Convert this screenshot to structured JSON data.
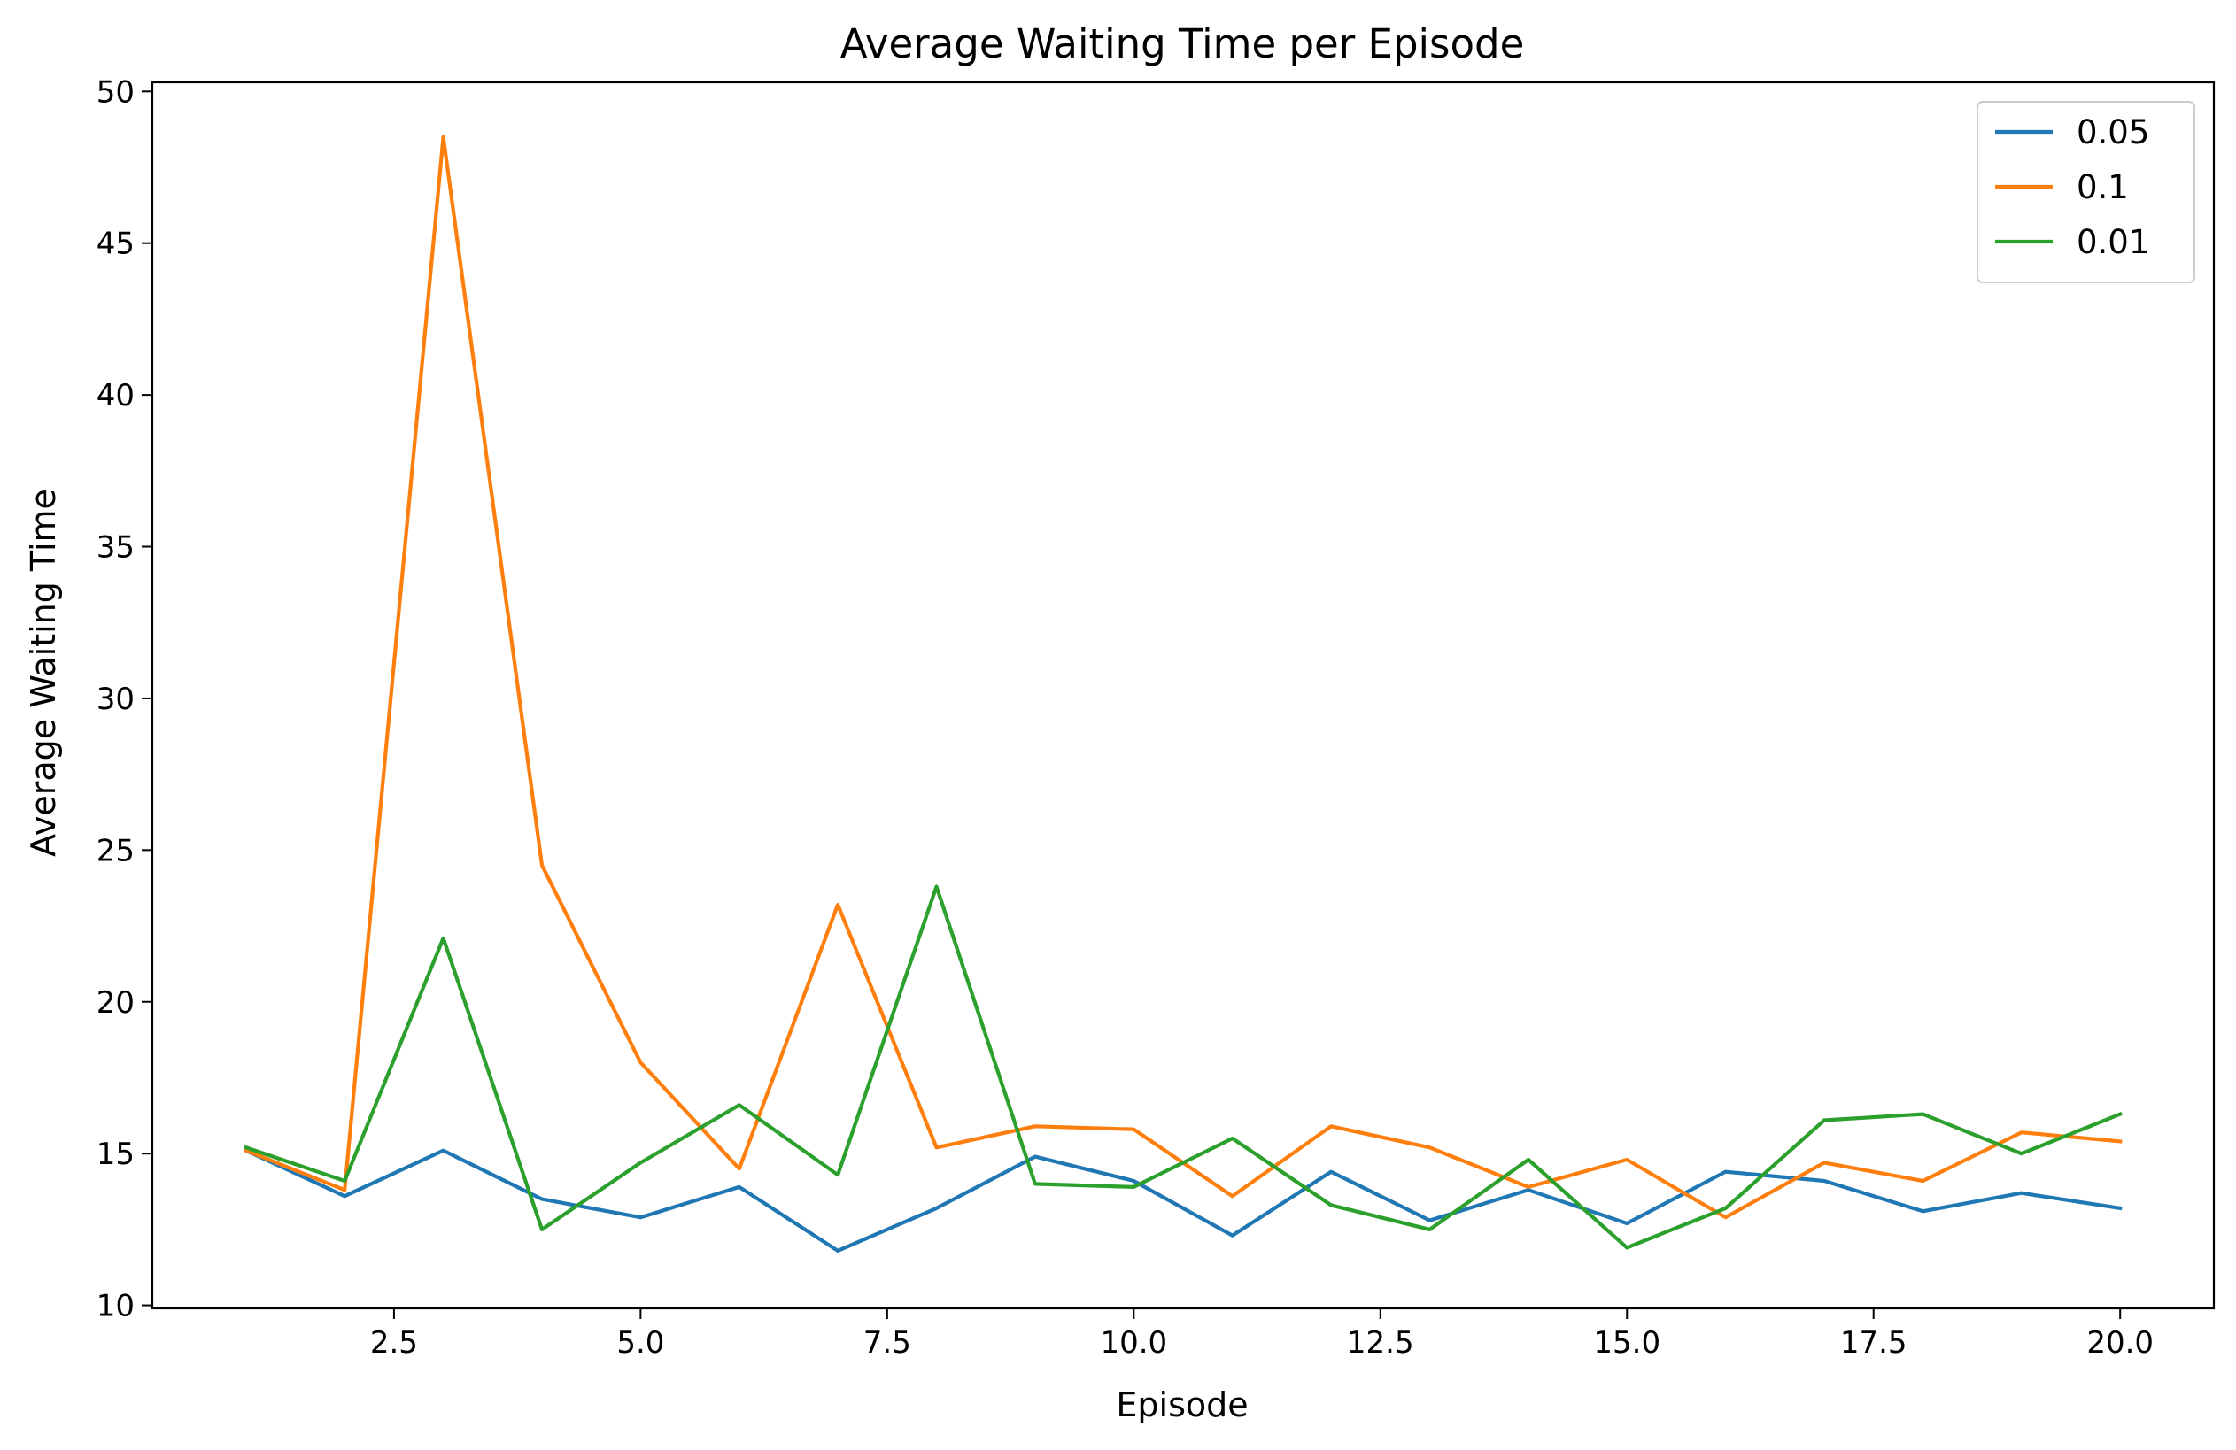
{
  "chart_data": {
    "type": "line",
    "title": "Average Waiting Time per Episode",
    "xlabel": "Episode",
    "ylabel": "Average Waiting Time",
    "x": [
      1,
      2,
      3,
      4,
      5,
      6,
      7,
      8,
      9,
      10,
      11,
      12,
      13,
      14,
      15,
      16,
      17,
      18,
      19,
      20
    ],
    "xlim": [
      0.05,
      20.95
    ],
    "ylim": [
      9.9,
      50.3
    ],
    "xticks": [
      2.5,
      5.0,
      7.5,
      10.0,
      12.5,
      15.0,
      17.5,
      20.0
    ],
    "xtick_labels": [
      "2.5",
      "5.0",
      "7.5",
      "10.0",
      "12.5",
      "15.0",
      "17.5",
      "20.0"
    ],
    "yticks": [
      10,
      15,
      20,
      25,
      30,
      35,
      40,
      45,
      50
    ],
    "ytick_labels": [
      "10",
      "15",
      "20",
      "25",
      "30",
      "35",
      "40",
      "45",
      "50"
    ],
    "grid": false,
    "legend_position": "top-right",
    "series": [
      {
        "name": "0.05",
        "color": "#1f77b4",
        "values": [
          15.1,
          13.6,
          15.1,
          13.5,
          12.9,
          13.9,
          11.8,
          13.2,
          14.9,
          14.1,
          12.3,
          14.4,
          12.8,
          13.8,
          12.7,
          14.4,
          14.1,
          13.1,
          13.7,
          13.2
        ]
      },
      {
        "name": "0.1",
        "color": "#ff7f0e",
        "values": [
          15.1,
          13.8,
          48.5,
          24.5,
          18.0,
          14.5,
          23.2,
          15.2,
          15.9,
          15.8,
          13.6,
          15.9,
          15.2,
          13.9,
          14.8,
          12.9,
          14.7,
          14.1,
          15.7,
          15.4
        ]
      },
      {
        "name": "0.01",
        "color": "#2ca02c",
        "values": [
          15.2,
          14.1,
          22.1,
          12.5,
          14.7,
          16.6,
          14.3,
          23.8,
          14.0,
          13.9,
          15.5,
          13.3,
          12.5,
          14.8,
          11.9,
          13.2,
          16.1,
          16.3,
          15.0,
          16.3
        ]
      }
    ]
  }
}
